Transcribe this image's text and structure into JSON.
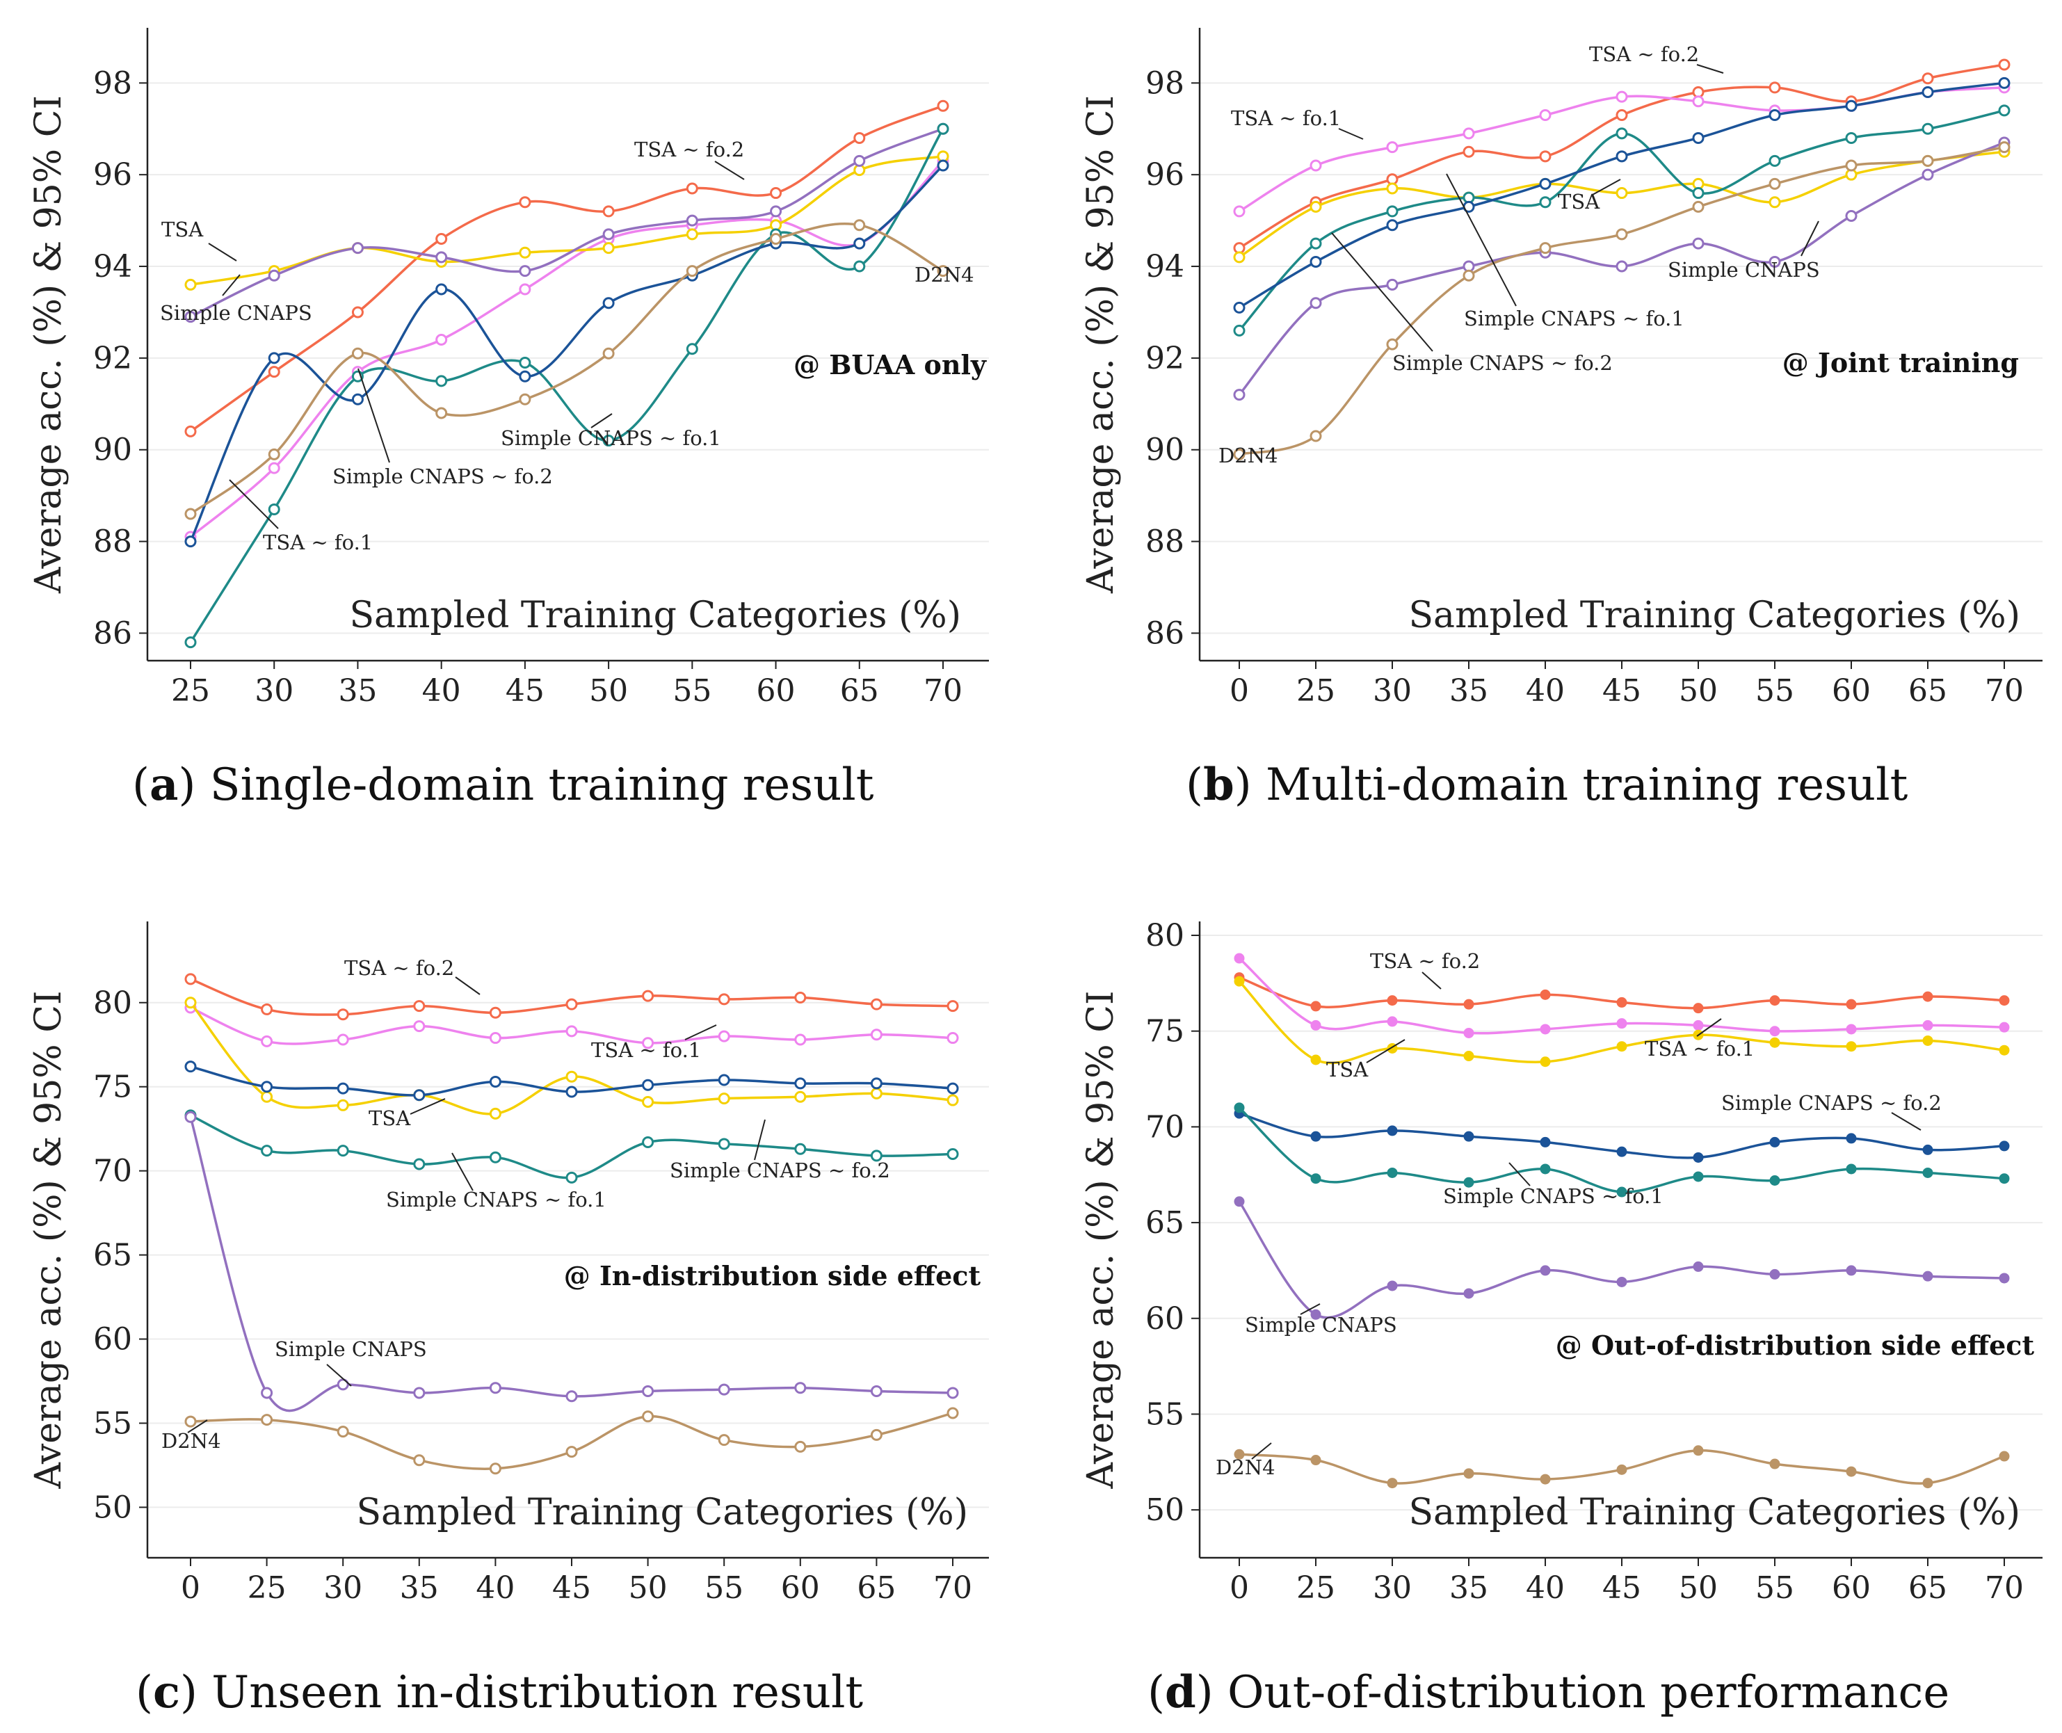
{
  "colors": {
    "tsa_fo2": "#f46a4a",
    "tsa_fo1": "#ee82ee",
    "tsa": "#f5d000",
    "simple_cnaps": "#9270bf",
    "simple_cnaps_fo1": "#1e8a88",
    "simple_cnaps_fo2": "#1b5398",
    "d2n4": "#bb9466"
  },
  "chart_data": [
    {
      "type": "line",
      "panel": "a",
      "caption_letter": "a",
      "caption_text": " Single-domain training result",
      "tag": "@ BUAA only",
      "xlabel": "Sampled Training Categories (%)",
      "ylabel": "Average acc. (%) & 95% CI",
      "categories": [
        "25",
        "30",
        "35",
        "40",
        "45",
        "50",
        "55",
        "60",
        "65",
        "70"
      ],
      "ylim": [
        85.4,
        98.9
      ],
      "yticks": [
        86,
        88,
        90,
        92,
        94,
        96,
        98
      ],
      "grid": true,
      "marker": "open",
      "series": [
        {
          "name": "TSA ~ fo.2",
          "color_key": "tsa_fo2",
          "values": [
            90.4,
            91.7,
            93.0,
            94.6,
            95.4,
            95.2,
            95.7,
            95.6,
            96.8,
            97.5
          ]
        },
        {
          "name": "TSA ~ fo.1",
          "color_key": "tsa_fo1",
          "values": [
            88.1,
            89.6,
            91.7,
            92.4,
            93.5,
            94.6,
            94.9,
            95.0,
            94.5,
            96.3
          ]
        },
        {
          "name": "TSA",
          "color_key": "tsa",
          "values": [
            93.6,
            93.9,
            94.4,
            94.1,
            94.3,
            94.4,
            94.7,
            94.9,
            96.1,
            96.4
          ]
        },
        {
          "name": "Simple CNAPS",
          "color_key": "simple_cnaps",
          "values": [
            92.9,
            93.8,
            94.4,
            94.2,
            93.9,
            94.7,
            95.0,
            95.2,
            96.3,
            97.0
          ]
        },
        {
          "name": "Simple CNAPS ~ fo.1",
          "color_key": "simple_cnaps_fo1",
          "values": [
            85.8,
            88.7,
            91.6,
            91.5,
            91.9,
            90.2,
            92.2,
            94.7,
            94.0,
            97.0
          ]
        },
        {
          "name": "Simple CNAPS ~ fo.2",
          "color_key": "simple_cnaps_fo2",
          "values": [
            88.0,
            92.0,
            91.1,
            93.5,
            91.6,
            93.2,
            93.8,
            94.5,
            94.5,
            96.2
          ]
        },
        {
          "name": "D2N4",
          "color_key": "d2n4",
          "values": [
            88.6,
            89.9,
            92.1,
            90.8,
            91.1,
            92.1,
            93.9,
            94.6,
            94.9,
            93.9
          ]
        }
      ],
      "annotations": [
        "TSA ~ fo.2",
        "TSA",
        "Simple CNAPS",
        "D2N4",
        "Simple CNAPS ~ fo.1",
        "Simple CNAPS ~ fo.2",
        "TSA ~ fo.1"
      ]
    },
    {
      "type": "line",
      "panel": "b",
      "caption_letter": "b",
      "caption_text": " Multi-domain training result",
      "tag": "@ Joint training",
      "xlabel": "Sampled Training Categories (%)",
      "ylabel": "Average acc. (%) & 95% CI",
      "categories": [
        "0",
        "25",
        "30",
        "35",
        "40",
        "45",
        "50",
        "55",
        "60",
        "65",
        "70"
      ],
      "ylim": [
        85.4,
        98.9
      ],
      "yticks": [
        86,
        88,
        90,
        92,
        94,
        96,
        98
      ],
      "grid": true,
      "marker": "open",
      "series": [
        {
          "name": "TSA ~ fo.2",
          "color_key": "tsa_fo2",
          "values": [
            94.4,
            95.4,
            95.9,
            96.5,
            96.4,
            97.3,
            97.8,
            97.9,
            97.6,
            98.1,
            98.4
          ]
        },
        {
          "name": "TSA ~ fo.1",
          "color_key": "tsa_fo1",
          "values": [
            95.2,
            96.2,
            96.6,
            96.9,
            97.3,
            97.7,
            97.6,
            97.4,
            97.5,
            97.8,
            97.9
          ]
        },
        {
          "name": "TSA",
          "color_key": "tsa",
          "values": [
            94.2,
            95.3,
            95.7,
            95.5,
            95.8,
            95.6,
            95.8,
            95.4,
            96.0,
            96.3,
            96.5
          ]
        },
        {
          "name": "Simple CNAPS",
          "color_key": "simple_cnaps",
          "values": [
            91.2,
            93.2,
            93.6,
            94.0,
            94.3,
            94.0,
            94.5,
            94.1,
            95.1,
            96.0,
            96.7
          ]
        },
        {
          "name": "Simple CNAPS ~ fo.1",
          "color_key": "simple_cnaps_fo1",
          "values": [
            92.6,
            94.5,
            95.2,
            95.5,
            95.4,
            96.9,
            95.6,
            96.3,
            96.8,
            97.0,
            97.4
          ]
        },
        {
          "name": "Simple CNAPS ~ fo.2",
          "color_key": "simple_cnaps_fo2",
          "values": [
            93.1,
            94.1,
            94.9,
            95.3,
            95.8,
            96.4,
            96.8,
            97.3,
            97.5,
            97.8,
            98.0
          ]
        },
        {
          "name": "D2N4",
          "color_key": "d2n4",
          "values": [
            89.9,
            90.3,
            92.3,
            93.8,
            94.4,
            94.7,
            95.3,
            95.8,
            96.2,
            96.3,
            96.6
          ]
        }
      ],
      "annotations": [
        "TSA ~ fo.2",
        "TSA ~ fo.1",
        "TSA",
        "Simple CNAPS",
        "Simple CNAPS ~ fo.1",
        "Simple CNAPS ~ fo.2",
        "D2N4"
      ]
    },
    {
      "type": "line",
      "panel": "c",
      "caption_letter": "c",
      "caption_text": " Unseen in-distribution result",
      "tag": "@ In-distribution side effect",
      "xlabel": "Sampled Training Categories (%)",
      "ylabel": "Average acc. (%) & 95% CI",
      "categories": [
        "0",
        "25",
        "30",
        "35",
        "40",
        "45",
        "50",
        "55",
        "60",
        "65",
        "70"
      ],
      "ylim": [
        47,
        84
      ],
      "yticks": [
        50,
        55,
        60,
        65,
        70,
        75,
        80
      ],
      "grid": true,
      "marker": "open",
      "series": [
        {
          "name": "TSA ~ fo.2",
          "color_key": "tsa_fo2",
          "values": [
            81.4,
            79.6,
            79.3,
            79.8,
            79.4,
            79.9,
            80.4,
            80.2,
            80.3,
            79.9,
            79.8
          ]
        },
        {
          "name": "TSA ~ fo.1",
          "color_key": "tsa_fo1",
          "values": [
            79.7,
            77.7,
            77.8,
            78.6,
            77.9,
            78.3,
            77.6,
            78.0,
            77.8,
            78.1,
            77.9
          ]
        },
        {
          "name": "TSA",
          "color_key": "tsa",
          "values": [
            80.0,
            74.4,
            73.9,
            74.5,
            73.4,
            75.6,
            74.1,
            74.3,
            74.4,
            74.6,
            74.2
          ]
        },
        {
          "name": "Simple CNAPS ~ fo.2",
          "color_key": "simple_cnaps_fo2",
          "values": [
            76.2,
            75.0,
            74.9,
            74.5,
            75.3,
            74.7,
            75.1,
            75.4,
            75.2,
            75.2,
            74.9
          ]
        },
        {
          "name": "Simple CNAPS ~ fo.1",
          "color_key": "simple_cnaps_fo1",
          "values": [
            73.3,
            71.2,
            71.2,
            70.4,
            70.8,
            69.6,
            71.7,
            71.6,
            71.3,
            70.9,
            71.0
          ]
        },
        {
          "name": "Simple CNAPS",
          "color_key": "simple_cnaps",
          "values": [
            73.2,
            56.8,
            57.3,
            56.8,
            57.1,
            56.6,
            56.9,
            57.0,
            57.1,
            56.9,
            56.8
          ]
        },
        {
          "name": "D2N4",
          "color_key": "d2n4",
          "values": [
            55.1,
            55.2,
            54.5,
            52.8,
            52.3,
            53.3,
            55.4,
            54.0,
            53.6,
            54.3,
            55.6
          ]
        }
      ],
      "annotations": [
        "TSA ~ fo.2",
        "TSA ~ fo.1",
        "TSA",
        "Simple CNAPS ~ fo.2",
        "Simple CNAPS ~ fo.1",
        "Simple CNAPS",
        "D2N4"
      ]
    },
    {
      "type": "line",
      "panel": "d",
      "caption_letter": "d",
      "caption_text": " Out-of-distribution performance",
      "tag": "@ Out-of-distribution side effect",
      "xlabel": "Sampled Training Categories (%)",
      "ylabel": "Average acc. (%) & 95% CI",
      "categories": [
        "0",
        "25",
        "30",
        "35",
        "40",
        "45",
        "50",
        "55",
        "60",
        "65",
        "70"
      ],
      "ylim": [
        47.5,
        80
      ],
      "yticks": [
        50,
        55,
        60,
        65,
        70,
        75,
        80
      ],
      "grid": true,
      "marker": "filled",
      "series": [
        {
          "name": "TSA ~ fo.2",
          "color_key": "tsa_fo2",
          "values": [
            77.8,
            76.3,
            76.6,
            76.4,
            76.9,
            76.5,
            76.2,
            76.6,
            76.4,
            76.8,
            76.6
          ]
        },
        {
          "name": "TSA ~ fo.1",
          "color_key": "tsa_fo1",
          "values": [
            78.8,
            75.3,
            75.5,
            74.9,
            75.1,
            75.4,
            75.3,
            75.0,
            75.1,
            75.3,
            75.2
          ]
        },
        {
          "name": "TSA",
          "color_key": "tsa",
          "values": [
            77.6,
            73.5,
            74.1,
            73.7,
            73.4,
            74.2,
            74.8,
            74.4,
            74.2,
            74.5,
            74.0
          ]
        },
        {
          "name": "Simple CNAPS ~ fo.2",
          "color_key": "simple_cnaps_fo2",
          "values": [
            70.7,
            69.5,
            69.8,
            69.5,
            69.2,
            68.7,
            68.4,
            69.2,
            69.4,
            68.8,
            69.0
          ]
        },
        {
          "name": "Simple CNAPS ~ fo.1",
          "color_key": "simple_cnaps_fo1",
          "values": [
            71.0,
            67.3,
            67.6,
            67.1,
            67.8,
            66.6,
            67.4,
            67.2,
            67.8,
            67.6,
            67.3
          ]
        },
        {
          "name": "Simple CNAPS",
          "color_key": "simple_cnaps",
          "values": [
            66.1,
            60.2,
            61.7,
            61.3,
            62.5,
            61.9,
            62.7,
            62.3,
            62.5,
            62.2,
            62.1
          ]
        },
        {
          "name": "D2N4",
          "color_key": "d2n4",
          "values": [
            52.9,
            52.6,
            51.4,
            51.9,
            51.6,
            52.1,
            53.1,
            52.4,
            52.0,
            51.4,
            52.8
          ]
        }
      ],
      "annotations": [
        "TSA ~ fo.2",
        "TSA",
        "TSA ~ fo.1",
        "Simple CNAPS ~ fo.2",
        "Simple CNAPS ~ fo.1",
        "Simple CNAPS",
        "D2N4"
      ]
    }
  ]
}
